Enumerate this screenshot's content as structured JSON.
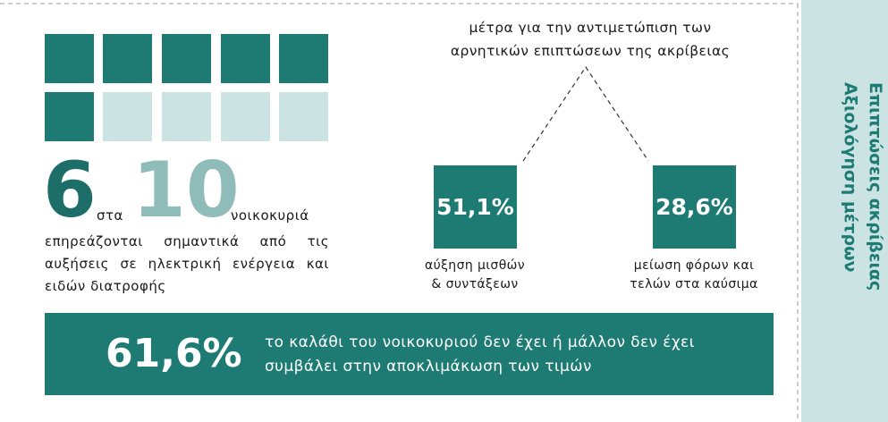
{
  "households": {
    "affected": "6",
    "connector": "στα",
    "total": "10",
    "unit": "νοικοκυριά",
    "description": "επηρεάζονται σημαντικά από τις αυξήσεις σε ηλεκτρική ενέργεια και ειδών διατροφής"
  },
  "measures": {
    "title_lines": [
      "μέτρα για την αντιμετώπιση των",
      "αρνητικών επιπτώσεων της ακρίβειας"
    ],
    "items": [
      {
        "value": "51,1%",
        "label_lines": [
          "αύξηση μισθών",
          "& συντάξεων"
        ]
      },
      {
        "value": "28,6%",
        "label_lines": [
          "μείωση φόρων και",
          "τελών στα καύσιμα"
        ]
      }
    ]
  },
  "basket": {
    "value": "61,6%",
    "text_lines": [
      "το καλάθι του νοικοκυριού δεν έχει ή μάλλον δεν έχει",
      "συμβάλει στην αποκλιμάκωση των τιμών"
    ]
  },
  "side_panel": {
    "lines": [
      "Επιπτώσεις ακρίβειας",
      "Αξιολόγηση μέτρων"
    ]
  }
}
